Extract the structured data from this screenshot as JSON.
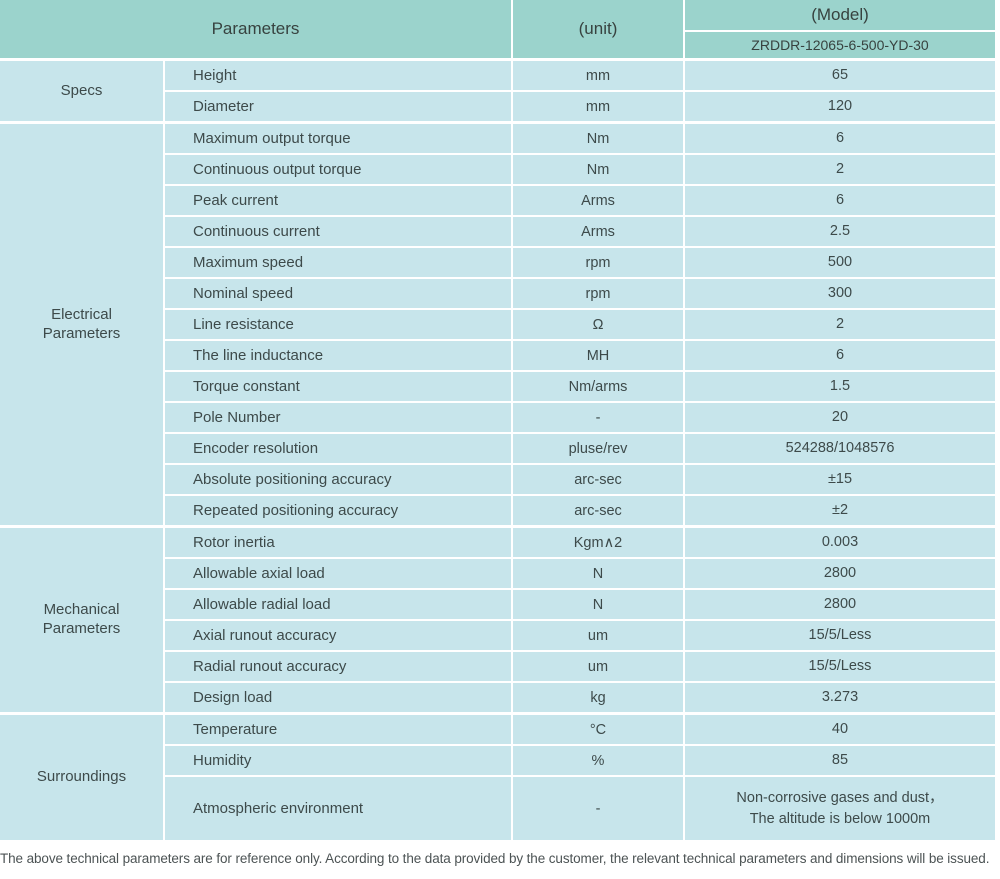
{
  "table": {
    "header": {
      "parameters_label": "Parameters",
      "unit_label": "(unit)",
      "model_label": "(Model)",
      "model_value": "ZRDDR-12065-6-500-YD-30"
    },
    "sections": [
      {
        "name": "Specs",
        "rows": [
          {
            "parameter": "Height",
            "unit": "mm",
            "value": "65"
          },
          {
            "parameter": "Diameter",
            "unit": "mm",
            "value": "120"
          }
        ]
      },
      {
        "name": "Electrical Parameters",
        "rows": [
          {
            "parameter": "Maximum output torque",
            "unit": "Nm",
            "value": "6"
          },
          {
            "parameter": "Continuous output torque",
            "unit": "Nm",
            "value": "2"
          },
          {
            "parameter": "Peak current",
            "unit": "Arms",
            "value": "6"
          },
          {
            "parameter": "Continuous current",
            "unit": "Arms",
            "value": "2.5"
          },
          {
            "parameter": "Maximum speed",
            "unit": "rpm",
            "value": "500"
          },
          {
            "parameter": "Nominal speed",
            "unit": "rpm",
            "value": "300"
          },
          {
            "parameter": "Line resistance",
            "unit": "Ω",
            "value": "2"
          },
          {
            "parameter": "The line inductance",
            "unit": "MH",
            "value": "6"
          },
          {
            "parameter": "Torque constant",
            "unit": "Nm/arms",
            "value": "1.5"
          },
          {
            "parameter": "Pole Number",
            "unit": "-",
            "value": "20"
          },
          {
            "parameter": "Encoder resolution",
            "unit": "pluse/rev",
            "value": "524288/1048576"
          },
          {
            "parameter": "Absolute positioning accuracy",
            "unit": "arc-sec",
            "value": "±15"
          },
          {
            "parameter": "Repeated positioning accuracy",
            "unit": "arc-sec",
            "value": "±2"
          }
        ]
      },
      {
        "name": "Mechanical Parameters",
        "rows": [
          {
            "parameter": "Rotor inertia",
            "unit": "Kgm∧2",
            "value": "0.003"
          },
          {
            "parameter": "Allowable axial load",
            "unit": "N",
            "value": "2800"
          },
          {
            "parameter": "Allowable radial load",
            "unit": "N",
            "value": "2800"
          },
          {
            "parameter": "Axial runout accuracy",
            "unit": "um",
            "value": "15/5/Less"
          },
          {
            "parameter": "Radial runout accuracy",
            "unit": "um",
            "value": "15/5/Less"
          },
          {
            "parameter": "Design load",
            "unit": "kg",
            "value": "3.273"
          }
        ]
      },
      {
        "name": "Surroundings",
        "rows": [
          {
            "parameter": "Temperature",
            "unit": "°C",
            "value": "40"
          },
          {
            "parameter": "Humidity",
            "unit": "%",
            "value": "85"
          },
          {
            "parameter": "Atmospheric environment",
            "unit": "-",
            "value": "Non-corrosive gases and dust，\nThe altitude is below 1000m"
          }
        ]
      }
    ]
  },
  "footer": {
    "note": "The above technical parameters are for reference only. According to the data provided by the customer, the relevant technical parameters and dimensions will be issued."
  },
  "colors": {
    "header_teal": "#9bd3cc",
    "cell_blue": "#c7e5eb",
    "text": "#3d4a4a",
    "gap_white": "#ffffff"
  }
}
